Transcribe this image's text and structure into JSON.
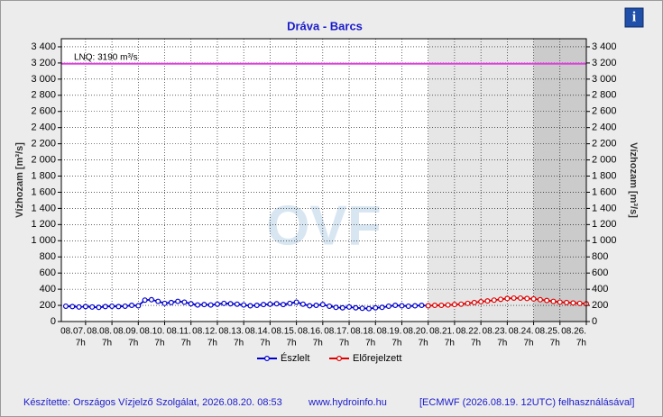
{
  "chart_data": {
    "type": "line",
    "title": "Dráva - Barcs",
    "y_label": "Vízhozam [m³/s]",
    "y2_label": "Vízhozam [m³/s]",
    "annotation": {
      "text": "LNQ: 3190 m³/s",
      "value": 3190,
      "color": "#e040e0"
    },
    "watermark": "OVF",
    "xlim": [
      -0.92,
      19
    ],
    "xticks": [
      {
        "value": 0,
        "label": "08.07."
      },
      {
        "value": 1,
        "label": "08.08."
      },
      {
        "value": 2,
        "label": "08.09."
      },
      {
        "value": 3,
        "label": "08.10."
      },
      {
        "value": 4,
        "label": "08.11."
      },
      {
        "value": 5,
        "label": "08.12."
      },
      {
        "value": 6,
        "label": "08.13."
      },
      {
        "value": 7,
        "label": "08.14."
      },
      {
        "value": 8,
        "label": "08.15."
      },
      {
        "value": 9,
        "label": "08.16."
      },
      {
        "value": 10,
        "label": "08.17."
      },
      {
        "value": 11,
        "label": "08.18."
      },
      {
        "value": 12,
        "label": "08.19."
      },
      {
        "value": 13,
        "label": "08.20."
      },
      {
        "value": 14,
        "label": "08.21."
      },
      {
        "value": 15,
        "label": "08.22."
      },
      {
        "value": 16,
        "label": "08.23."
      },
      {
        "value": 17,
        "label": "08.24."
      },
      {
        "value": 18,
        "label": "08.25."
      },
      {
        "value": 19,
        "label": "08.26."
      }
    ],
    "xtick_sublabel": "7h",
    "ylim": [
      0,
      3500
    ],
    "yticks": [
      0,
      200,
      {
        "value": 400,
        "label": "400"
      },
      600,
      800,
      {
        "value": 1000,
        "label": "1 000"
      },
      {
        "value": 1200,
        "label": "1 200"
      },
      {
        "value": 1400,
        "label": "1 400"
      },
      {
        "value": 1600,
        "label": "1 600"
      },
      {
        "value": 1800,
        "label": "1 800"
      },
      {
        "value": 2000,
        "label": "2 000"
      },
      {
        "value": 2200,
        "label": "2 200"
      },
      {
        "value": 2400,
        "label": "2 400"
      },
      {
        "value": 2600,
        "label": "2 600"
      },
      {
        "value": 2800,
        "label": "2 800"
      },
      {
        "value": 3000,
        "label": "3 000"
      },
      {
        "value": 3200,
        "label": "3 200"
      },
      {
        "value": 3400,
        "label": "3 400"
      }
    ],
    "grid": true,
    "shaded_regions": [
      {
        "from": 13,
        "to": 19,
        "color": "#e6e6e6"
      },
      {
        "from": 17,
        "to": 19,
        "color": "#cbcbcb"
      }
    ],
    "series": [
      {
        "name": "Észlelt",
        "color": "#0000cc",
        "x": [
          -0.75,
          -0.5,
          -0.25,
          0,
          0.25,
          0.5,
          0.75,
          1,
          1.25,
          1.5,
          1.75,
          2,
          2.25,
          2.5,
          2.75,
          3,
          3.25,
          3.5,
          3.75,
          4,
          4.25,
          4.5,
          4.75,
          5,
          5.25,
          5.5,
          5.75,
          6,
          6.25,
          6.5,
          6.75,
          7,
          7.25,
          7.5,
          7.75,
          8,
          8.25,
          8.5,
          8.75,
          9,
          9.25,
          9.5,
          9.75,
          10,
          10.25,
          10.5,
          10.75,
          11,
          11.25,
          11.5,
          11.75,
          12,
          12.25,
          12.5,
          12.75,
          13
        ],
        "values": [
          190,
          185,
          180,
          185,
          180,
          175,
          185,
          190,
          185,
          190,
          200,
          195,
          265,
          270,
          250,
          225,
          235,
          250,
          240,
          220,
          205,
          210,
          205,
          215,
          225,
          220,
          215,
          205,
          195,
          200,
          210,
          215,
          220,
          210,
          225,
          240,
          215,
          195,
          200,
          210,
          190,
          175,
          170,
          180,
          170,
          165,
          160,
          170,
          175,
          190,
          200,
          195,
          190,
          195,
          200,
          195
        ]
      },
      {
        "name": "Előrejelzett",
        "color": "#dd0000",
        "x": [
          13,
          13.25,
          13.5,
          13.75,
          14,
          14.25,
          14.5,
          14.75,
          15,
          15.25,
          15.5,
          15.75,
          16,
          16.25,
          16.5,
          16.75,
          17,
          17.25,
          17.5,
          17.75,
          18,
          18.25,
          18.5,
          18.75,
          19
        ],
        "values": [
          195,
          200,
          200,
          205,
          210,
          215,
          225,
          235,
          245,
          255,
          265,
          275,
          285,
          290,
          290,
          285,
          280,
          270,
          260,
          250,
          240,
          235,
          230,
          225,
          220
        ]
      }
    ],
    "footer": {
      "left": "Készítette: Országos Vízjelző Szolgálat, 2026.08.20. 08:53",
      "center": "www.hydroinfo.hu",
      "right": "[ECMWF (2026.08.19. 12UTC) felhasználásával]"
    },
    "info_icon": "i"
  }
}
